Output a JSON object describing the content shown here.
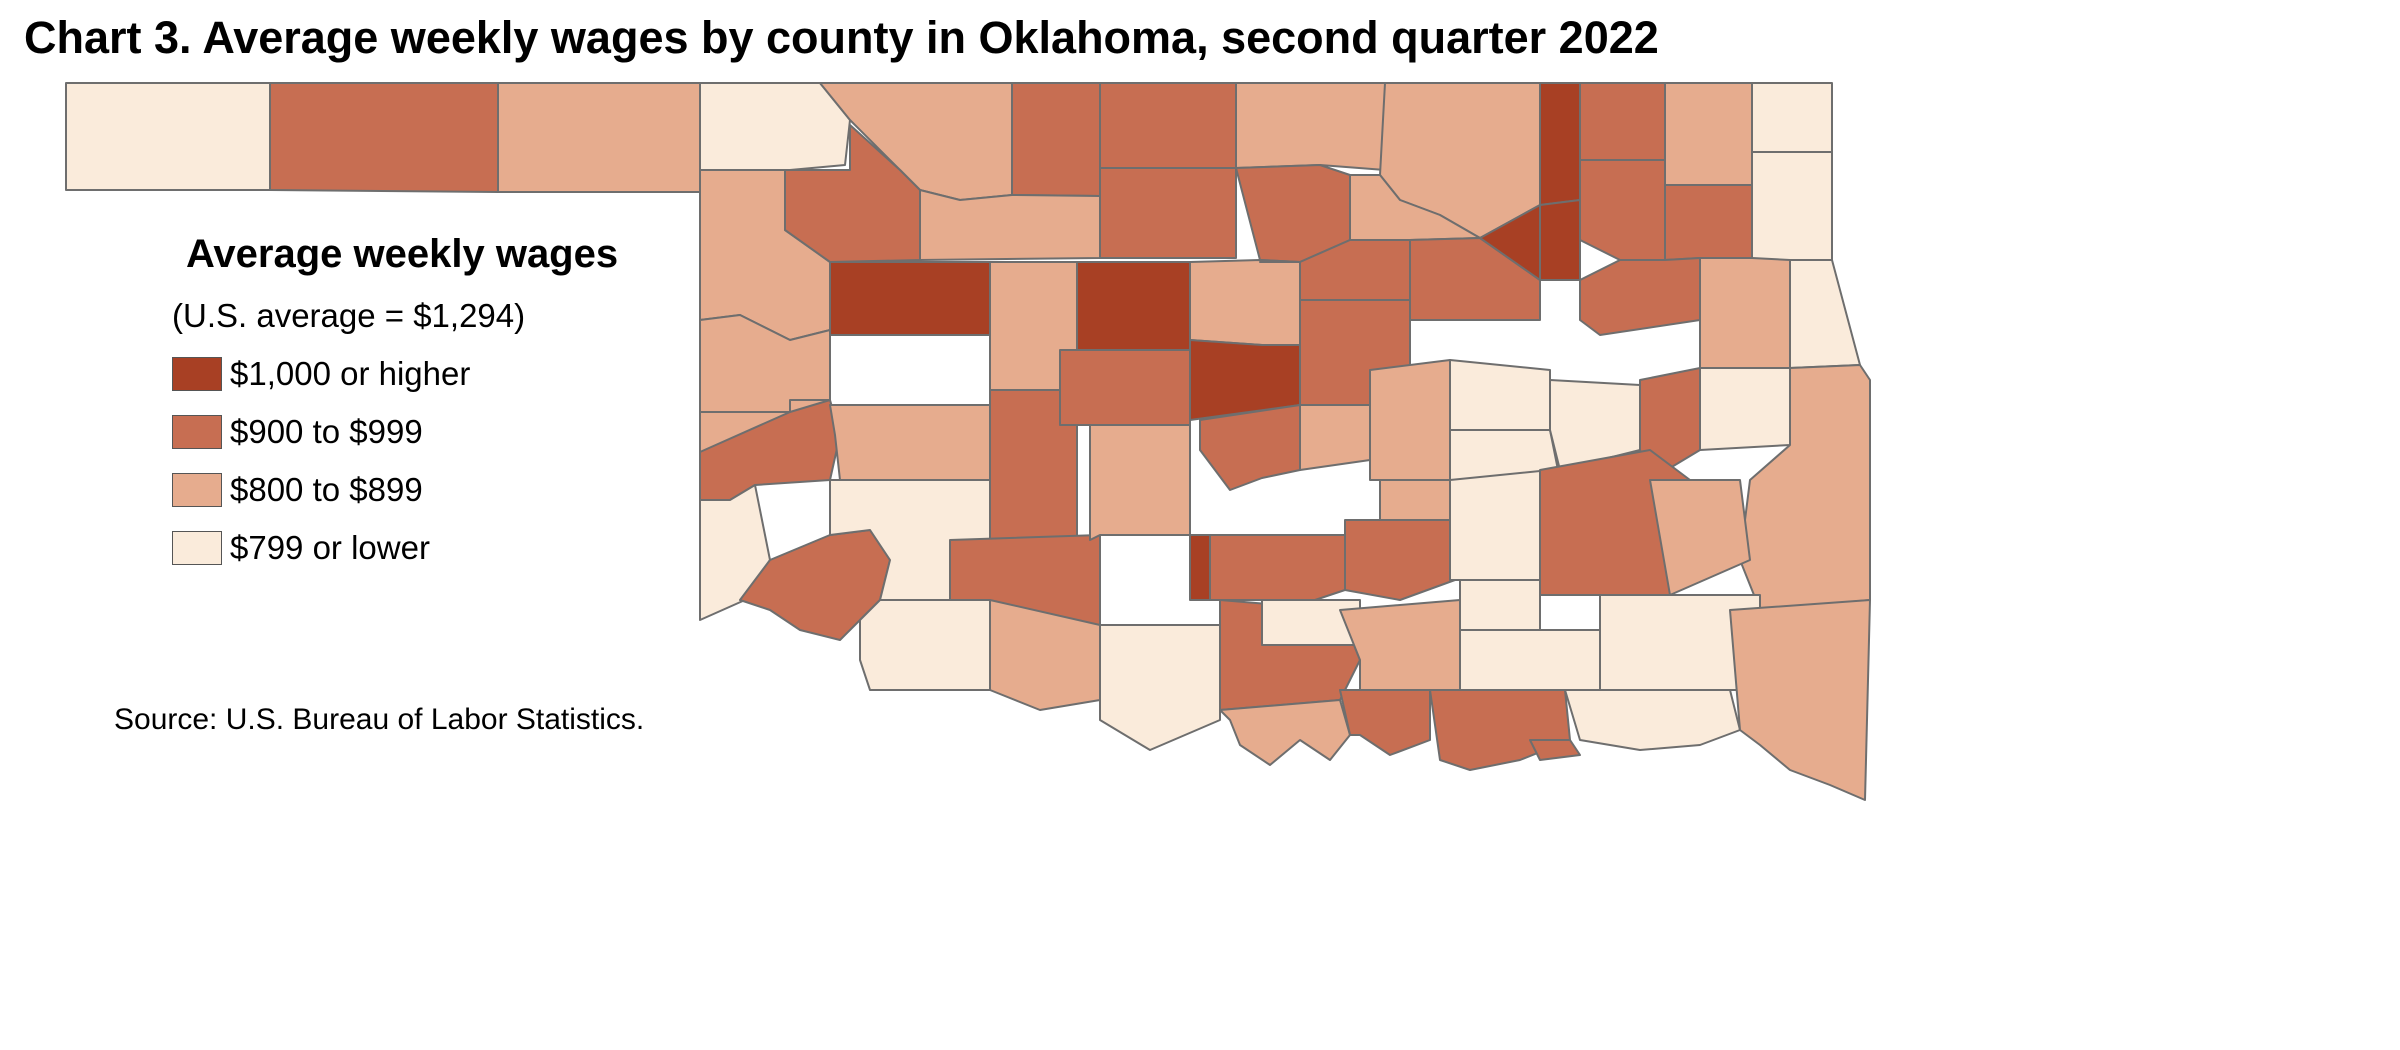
{
  "title": "Chart 3. Average weekly wages by county in Oklahoma, second quarter 2022",
  "legend": {
    "title": "Average weekly wages",
    "subtitle": "(U.S. average = $1,294)",
    "classes": [
      {
        "label": "$1,000 or higher",
        "color": "#a84024"
      },
      {
        "label": "$900 to $999",
        "color": "#c76e52"
      },
      {
        "label": "$800 to $899",
        "color": "#e6ac8e"
      },
      {
        "label": "$799 or lower",
        "color": "#faebdb"
      }
    ]
  },
  "source": "Source: U.S. Bureau of Labor Statistics.",
  "colors": {
    "border": "#6e6e6e",
    "background": "#ffffff"
  }
}
